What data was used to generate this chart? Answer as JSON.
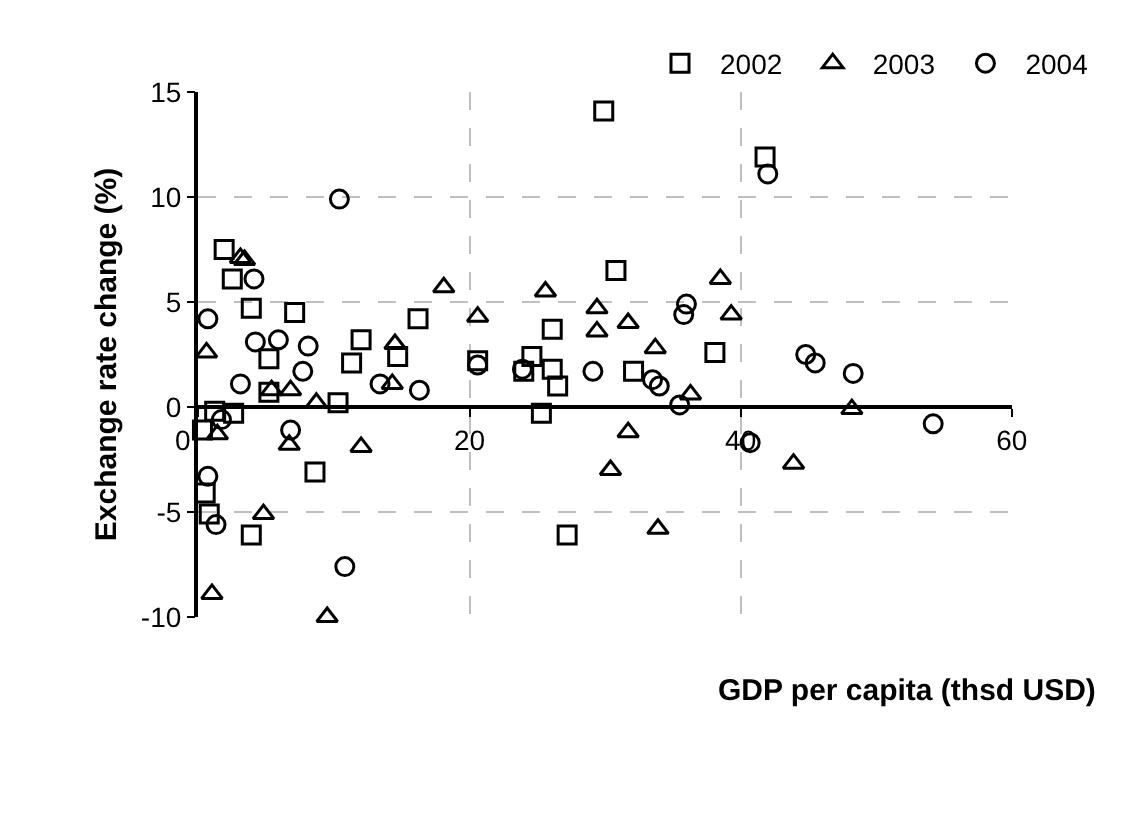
{
  "chart_data": {
    "type": "scatter",
    "xlabel": "GDP per capita (thsd USD)",
    "ylabel": "Exchange rate change (%)",
    "xlim": [
      0,
      60
    ],
    "xticks": [
      0,
      20,
      40,
      60
    ],
    "ylim": [
      -10,
      15
    ],
    "yticks": [
      -10,
      -5,
      0,
      5,
      10,
      15
    ],
    "grid": true,
    "legend": "top right",
    "series": [
      {
        "name": "2002",
        "color": "#000000",
        "marker": "square",
        "x": [
          1.9,
          2.5,
          3.9,
          7.1,
          5.2,
          5.2,
          2.6,
          1.2,
          0.3,
          0.5,
          0.8,
          3.9,
          8.6,
          10.3,
          11.3,
          12.0,
          14.7,
          16.2,
          20.6,
          29.9,
          30.8,
          26.1,
          24.6,
          26.1,
          26.5,
          24.0,
          25.3,
          32.1,
          38.1,
          27.2,
          41.8
        ],
        "values": [
          7.5,
          6.1,
          4.7,
          4.5,
          2.3,
          0.7,
          -0.3,
          -0.2,
          -1.1,
          -4.1,
          -5.1,
          -6.1,
          -3.1,
          0.2,
          2.1,
          3.2,
          2.4,
          4.2,
          2.2,
          14.1,
          6.5,
          3.7,
          2.4,
          1.8,
          1.0,
          1.7,
          -0.3,
          1.7,
          2.6,
          -6.1,
          11.9
        ]
      },
      {
        "name": "2003",
        "color": "#000000",
        "marker": "triangle",
        "x": [
          3.1,
          3.4,
          0.6,
          5.4,
          6.8,
          8.7,
          6.7,
          4.8,
          1.0,
          9.5,
          12.0,
          14.5,
          14.3,
          18.1,
          20.6,
          1.4,
          25.6,
          29.4,
          29.4,
          31.7,
          33.7,
          38.5,
          39.3,
          36.3,
          31.7,
          30.4,
          33.9,
          43.9,
          48.2
        ],
        "values": [
          7.1,
          7.0,
          2.6,
          0.8,
          0.8,
          0.2,
          -1.8,
          -5.1,
          -8.9,
          -10.0,
          -1.9,
          3.0,
          1.1,
          5.7,
          4.3,
          -1.3,
          5.5,
          4.7,
          3.6,
          4.0,
          2.8,
          6.1,
          4.4,
          0.6,
          -1.2,
          -3.0,
          -5.8,
          -2.7,
          -0.1
        ]
      },
      {
        "name": "2004",
        "color": "#000000",
        "marker": "circle",
        "x": [
          0.7,
          4.1,
          4.2,
          5.9,
          8.1,
          7.7,
          3.1,
          10.4,
          6.8,
          0.7,
          1.3,
          10.8,
          1.7,
          13.4,
          16.3,
          20.6,
          23.9,
          29.1,
          33.5,
          34.0,
          35.5,
          36.0,
          35.8,
          40.7,
          42.0,
          44.8,
          45.5,
          48.3,
          54.2
        ],
        "values": [
          4.2,
          6.1,
          3.1,
          3.2,
          2.9,
          1.7,
          1.1,
          9.9,
          -1.1,
          -3.3,
          -5.6,
          -7.6,
          -0.6,
          1.1,
          0.8,
          2.0,
          1.8,
          1.7,
          1.3,
          1.0,
          0.1,
          4.9,
          4.4,
          -1.7,
          11.1,
          2.5,
          2.1,
          1.6,
          -0.8
        ]
      }
    ]
  }
}
